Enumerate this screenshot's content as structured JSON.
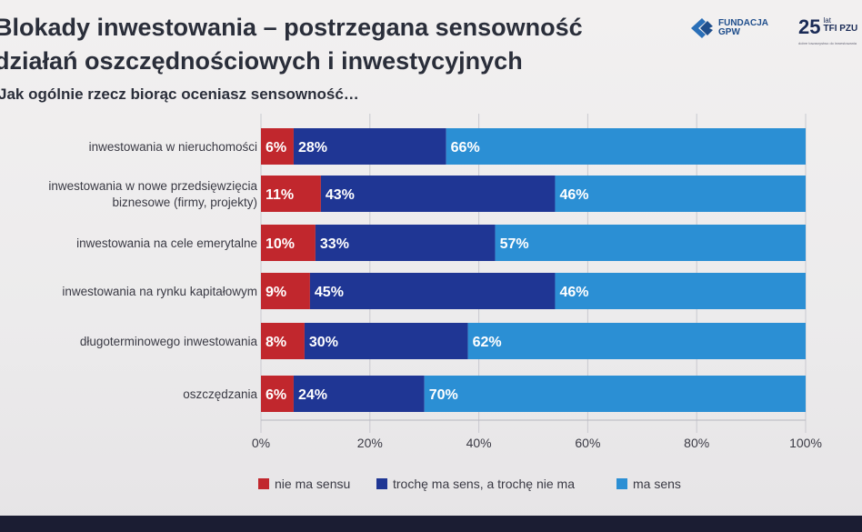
{
  "header": {
    "title_line1": "Blokady inwestowania – postrzegana sensowność",
    "title_line2": "działań oszczędnościowych i inwestycyjnych",
    "question": "Jak ogólnie rzecz biorąc oceniasz sensowność…"
  },
  "logos": {
    "gpw_line1": "FUNDACJA",
    "gpw_line2": "GPW",
    "pzu_number": "25",
    "pzu_lat": "lat",
    "pzu_name": "TFI PZU",
    "pzu_tagline": "dobre towarzystwo do inwestowania"
  },
  "chart_data": {
    "type": "bar",
    "orientation": "horizontal",
    "stacked": true,
    "categories": [
      "inwestowania w nieruchomości",
      "inwestowania w nowe przedsięwzięcia biznesowe (firmy, projekty)",
      "inwestowania na cele emerytalne",
      "inwestowania na rynku kapitałowym",
      "długoterminowego inwestowania",
      "oszczędzania"
    ],
    "series": [
      {
        "name": "nie ma sensu",
        "color": "#c1272d",
        "values": [
          6,
          11,
          10,
          9,
          8,
          6
        ]
      },
      {
        "name": "trochę ma sens, a trochę nie ma",
        "color": "#1f3694",
        "values": [
          28,
          43,
          33,
          45,
          30,
          24
        ]
      },
      {
        "name": "ma sens",
        "color": "#2b8fd4",
        "values": [
          66,
          46,
          57,
          46,
          62,
          70
        ]
      }
    ],
    "value_labels": [
      [
        "6%",
        "28%",
        "66%"
      ],
      [
        "11%",
        "43%",
        "46%"
      ],
      [
        "10%",
        "33%",
        "57%"
      ],
      [
        "9%",
        "45%",
        "46%"
      ],
      [
        "8%",
        "30%",
        "62%"
      ],
      [
        "6%",
        "24%",
        "70%"
      ]
    ],
    "xlim": [
      0,
      100
    ],
    "xticks": [
      "0%",
      "20%",
      "40%",
      "60%",
      "80%",
      "100%"
    ],
    "grid": true,
    "legend_position": "bottom"
  }
}
